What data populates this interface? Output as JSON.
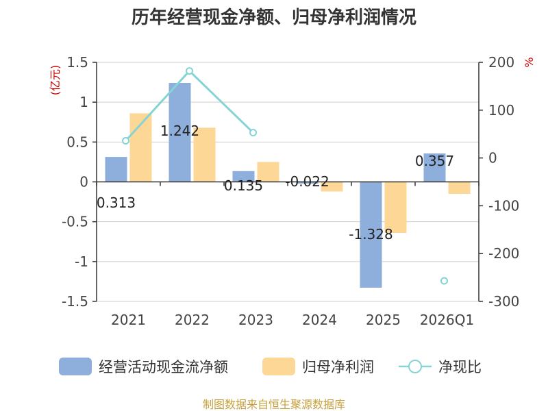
{
  "chart_data": {
    "type": "bar",
    "title": "历年经营现金净额、归母净利润情况",
    "left_unit": "(亿元)",
    "right_unit": "%",
    "categories": [
      "2021",
      "2022",
      "2023",
      "2024",
      "2025",
      "2026Q1"
    ],
    "left_axis": {
      "ylim": [
        -1.5,
        1.5
      ],
      "ticks": [
        "1.5",
        "1",
        "0.5",
        "0",
        "-0.5",
        "-1",
        "-1.5"
      ]
    },
    "right_axis": {
      "ylim": [
        -300,
        200
      ],
      "ticks": [
        "200",
        "100",
        "0",
        "-100",
        "-200",
        "-300"
      ]
    },
    "series": [
      {
        "name": "经营活动现金流净额",
        "type": "bar",
        "axis": "left",
        "color": "#8eaedb",
        "values": [
          0.313,
          1.242,
          0.135,
          -0.022,
          -1.328,
          0.357
        ],
        "labels": [
          "0.313",
          "1.242",
          "0.135",
          "-0.022",
          "-1.328",
          "0.357"
        ]
      },
      {
        "name": "归母净利润",
        "type": "bar",
        "axis": "left",
        "color": "#fdd795",
        "values": [
          0.86,
          0.68,
          0.25,
          -0.12,
          -0.64,
          -0.15
        ]
      },
      {
        "name": "净现比",
        "type": "line",
        "axis": "right",
        "color": "#86d3d6",
        "values": [
          36,
          182,
          53,
          null,
          null,
          -257
        ]
      }
    ],
    "grid": true,
    "legend_position": "bottom"
  },
  "source_text": "制图数据来自恒生聚源数据库",
  "colors": {
    "title": "#333333",
    "unit": "#cc0000",
    "source": "#c8a03c",
    "axis": "#333333",
    "grid": "#cccccc"
  }
}
